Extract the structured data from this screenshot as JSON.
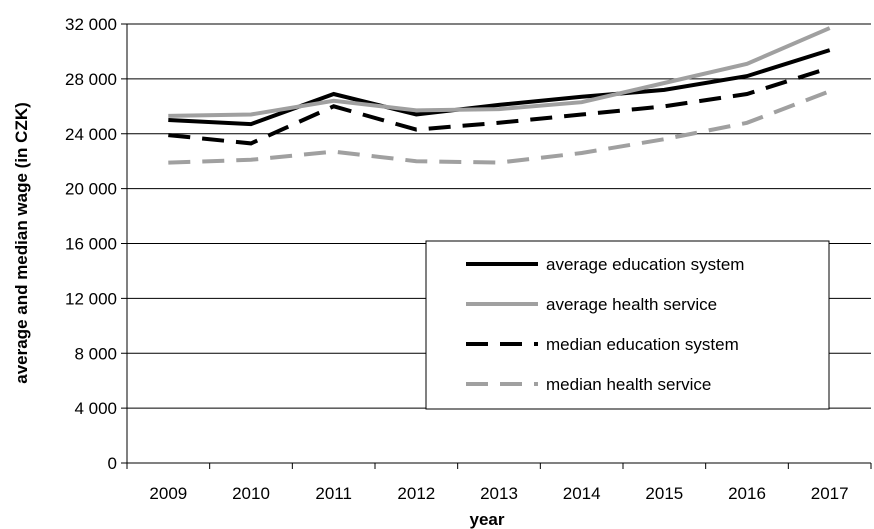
{
  "chart_data": {
    "type": "line",
    "title": "",
    "xlabel": "year",
    "ylabel": "average and median wage (in CZK)",
    "x": [
      "2009",
      "2010",
      "2011",
      "2012",
      "2013",
      "2014",
      "2015",
      "2016",
      "2017"
    ],
    "ylim": [
      0,
      32000
    ],
    "yticks": [
      0,
      4000,
      8000,
      12000,
      16000,
      20000,
      24000,
      28000,
      32000
    ],
    "ytick_labels": [
      "0",
      "4 000",
      "8 000",
      "12 000",
      "16 000",
      "20 000",
      "24 000",
      "28 000",
      "32 000"
    ],
    "grid": "horizontal",
    "legend_position": "center-right",
    "series": [
      {
        "name": "average education system",
        "color": "#000000",
        "style": "solid",
        "values": [
          25000,
          24700,
          26900,
          25400,
          26100,
          26700,
          27200,
          28200,
          30100
        ]
      },
      {
        "name": "average health service",
        "color": "#a0a0a0",
        "style": "solid",
        "values": [
          25300,
          25400,
          26400,
          25700,
          25800,
          26300,
          27700,
          29100,
          31700
        ]
      },
      {
        "name": "median education system",
        "color": "#000000",
        "style": "dashed",
        "values": [
          23900,
          23300,
          26000,
          24300,
          24800,
          25400,
          26000,
          26900,
          28800
        ]
      },
      {
        "name": "median health service",
        "color": "#a0a0a0",
        "style": "dashed",
        "values": [
          21900,
          22100,
          22700,
          22000,
          21900,
          22600,
          23600,
          24800,
          27100
        ]
      }
    ]
  }
}
